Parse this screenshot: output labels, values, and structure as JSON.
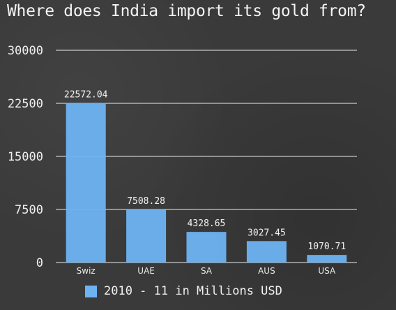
{
  "chart_data": {
    "type": "bar",
    "title": "Where does India import its gold from?",
    "categories": [
      "Swiz",
      "UAE",
      "SA",
      "AUS",
      "USA"
    ],
    "series": [
      {
        "name": "2010 - 11 in Millions USD",
        "values": [
          22572.04,
          7508.28,
          4328.65,
          3027.45,
          1070.71
        ]
      }
    ],
    "value_labels": [
      "22572.04",
      "7508.28",
      "4328.65",
      "3027.45",
      "1070.71"
    ],
    "yticks": [
      0,
      7500,
      15000,
      22500,
      30000
    ],
    "ylim": [
      0,
      30000
    ],
    "xlabel": "",
    "ylabel": "",
    "grid": true,
    "legend_position": "bottom",
    "colors": {
      "bar": "#6db3f2",
      "grid": "#ffffff",
      "background": "#3a3a3a"
    }
  }
}
